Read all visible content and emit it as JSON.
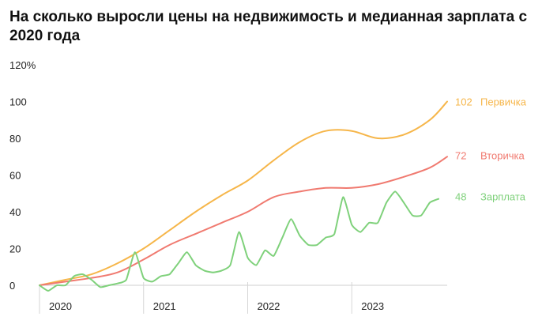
{
  "title": "На сколько выросли цены на недвижимость и медианная зарплата с 2020 года",
  "chart_data": {
    "type": "line",
    "title": "На сколько выросли цены на недвижимость и медианная зарплата с 2020 года",
    "xlabel": "",
    "ylabel": "",
    "y_unit": "%",
    "ylim": [
      0,
      120
    ],
    "y_ticks": [
      "120%",
      "100",
      "80",
      "60",
      "40",
      "20",
      "0"
    ],
    "xlim": [
      "2020-01",
      "2023-12"
    ],
    "x_ticks": [
      "2020",
      "2021",
      "2022",
      "2023"
    ],
    "grid": false,
    "legend": "inline-right",
    "series": [
      {
        "name": "Первичка",
        "end_value": "102",
        "color": "#f6b64a",
        "points": [
          [
            "2020-01",
            0
          ],
          [
            "2020-04",
            3
          ],
          [
            "2020-07",
            6
          ],
          [
            "2020-10",
            12
          ],
          [
            "2021-01",
            20
          ],
          [
            "2021-04",
            30
          ],
          [
            "2021-07",
            40
          ],
          [
            "2021-10",
            49
          ],
          [
            "2022-01",
            57
          ],
          [
            "2022-04",
            68
          ],
          [
            "2022-07",
            78
          ],
          [
            "2022-10",
            84
          ],
          [
            "2023-01",
            84
          ],
          [
            "2023-04",
            80
          ],
          [
            "2023-07",
            82
          ],
          [
            "2023-10",
            90
          ],
          [
            "2023-12",
            100
          ]
        ]
      },
      {
        "name": "Вторичка",
        "end_value": "72",
        "color": "#f07a70",
        "points": [
          [
            "2020-01",
            0
          ],
          [
            "2020-04",
            2
          ],
          [
            "2020-07",
            4
          ],
          [
            "2020-10",
            7
          ],
          [
            "2021-01",
            14
          ],
          [
            "2021-04",
            22
          ],
          [
            "2021-07",
            28
          ],
          [
            "2021-10",
            34
          ],
          [
            "2022-01",
            40
          ],
          [
            "2022-04",
            48
          ],
          [
            "2022-07",
            51
          ],
          [
            "2022-10",
            53
          ],
          [
            "2023-01",
            53
          ],
          [
            "2023-04",
            55
          ],
          [
            "2023-07",
            59
          ],
          [
            "2023-10",
            64
          ],
          [
            "2023-12",
            70
          ]
        ]
      },
      {
        "name": "Зарплата",
        "end_value": "48",
        "color": "#7fd17b",
        "points": [
          [
            "2020-01",
            0
          ],
          [
            "2020-02",
            -3
          ],
          [
            "2020-03",
            0
          ],
          [
            "2020-04",
            0
          ],
          [
            "2020-05",
            5
          ],
          [
            "2020-06",
            6
          ],
          [
            "2020-07",
            3
          ],
          [
            "2020-08",
            -1
          ],
          [
            "2020-09",
            0
          ],
          [
            "2020-10",
            1
          ],
          [
            "2020-11",
            3
          ],
          [
            "2020-12",
            18
          ],
          [
            "2021-01",
            4
          ],
          [
            "2021-02",
            2
          ],
          [
            "2021-03",
            5
          ],
          [
            "2021-04",
            6
          ],
          [
            "2021-05",
            12
          ],
          [
            "2021-06",
            18
          ],
          [
            "2021-07",
            11
          ],
          [
            "2021-08",
            8
          ],
          [
            "2021-09",
            7
          ],
          [
            "2021-10",
            8
          ],
          [
            "2021-11",
            11
          ],
          [
            "2021-12",
            29
          ],
          [
            "2022-01",
            15
          ],
          [
            "2022-02",
            11
          ],
          [
            "2022-03",
            19
          ],
          [
            "2022-04",
            16
          ],
          [
            "2022-05",
            26
          ],
          [
            "2022-06",
            36
          ],
          [
            "2022-07",
            27
          ],
          [
            "2022-08",
            22
          ],
          [
            "2022-09",
            22
          ],
          [
            "2022-10",
            26
          ],
          [
            "2022-11",
            28
          ],
          [
            "2022-12",
            48
          ],
          [
            "2023-01",
            33
          ],
          [
            "2023-02",
            29
          ],
          [
            "2023-03",
            34
          ],
          [
            "2023-04",
            34
          ],
          [
            "2023-05",
            45
          ],
          [
            "2023-06",
            51
          ],
          [
            "2023-07",
            45
          ],
          [
            "2023-08",
            38
          ],
          [
            "2023-09",
            38
          ],
          [
            "2023-10",
            45
          ],
          [
            "2023-11",
            47
          ]
        ]
      }
    ]
  }
}
